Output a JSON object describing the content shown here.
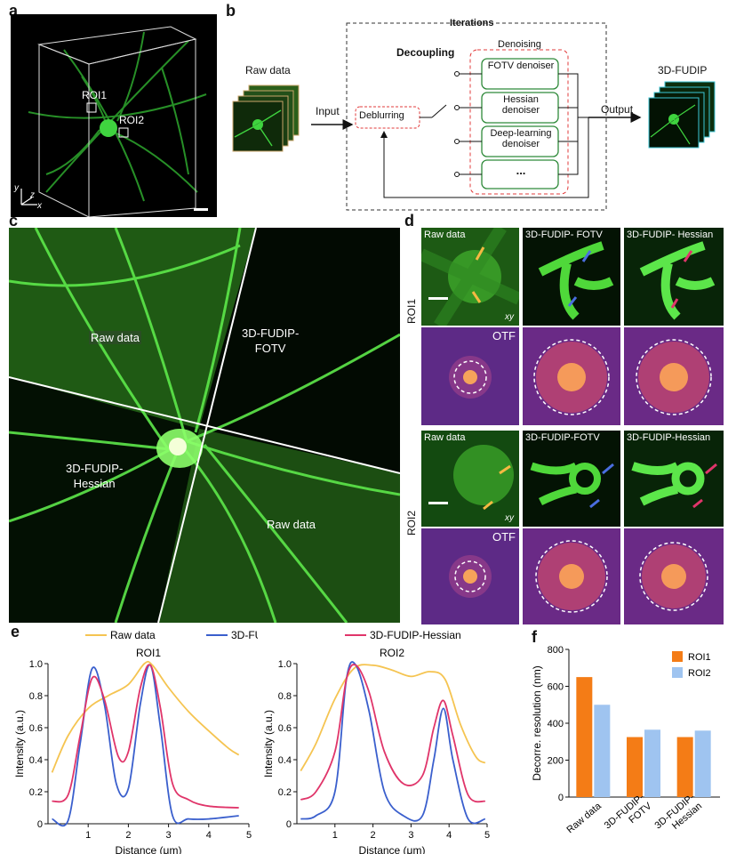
{
  "panels": {
    "a": "a",
    "b": "b",
    "c": "c",
    "d": "d",
    "e": "e",
    "f": "f"
  },
  "panel_a": {
    "roi1": "ROI1",
    "roi2": "ROI2",
    "axis_y": "y",
    "axis_z": "z",
    "axis_x": "x"
  },
  "panel_b": {
    "iterations": "Iterations",
    "decoupling": "Decoupling",
    "denoising": "Denoising",
    "raw_data": "Raw data",
    "input": "Input",
    "deblurring": "Deblurring",
    "output": "Output",
    "result": "3D-FUDIP",
    "denoisers": [
      "FOTV denoiser",
      "Hessian denoiser",
      "Deep-learning denoiser",
      "..."
    ]
  },
  "panel_c": {
    "raw_top": "Raw data",
    "fotv": "3D-FUDIP-\nFOTV",
    "hessian": "3D-FUDIP-\nHessian",
    "raw_bottom": "Raw data"
  },
  "panel_d": {
    "roi1": "ROI1",
    "roi2": "ROI2",
    "otf": "OTF",
    "xy": "xy",
    "row1_titles": [
      "Raw data",
      "3D-FUDIP- FOTV",
      "3D-FUDIP- Hessian"
    ],
    "row2_titles": [
      "Raw data",
      "3D-FUDIP-FOTV",
      "3D-FUDIP-Hessian"
    ]
  },
  "chart_data": [
    {
      "type": "line",
      "title": "ROI1",
      "xlabel": "Distance (μm)",
      "ylabel": "Intensity (a.u.)",
      "xlim": [
        0,
        5
      ],
      "ylim": [
        0,
        1.0
      ],
      "xticks": [
        1,
        2,
        3,
        4,
        5
      ],
      "yticks": [
        0,
        0.2,
        0.4,
        0.6,
        0.8,
        1.0
      ],
      "series": [
        {
          "name": "Raw data",
          "color": "#f5c451",
          "x": [
            0.1,
            0.5,
            1.0,
            1.5,
            2.0,
            2.4,
            2.6,
            3.0,
            3.5,
            4.0,
            4.5,
            4.75
          ],
          "y": [
            0.32,
            0.55,
            0.72,
            0.8,
            0.87,
            1.0,
            0.99,
            0.85,
            0.7,
            0.58,
            0.47,
            0.43
          ]
        },
        {
          "name": "3D-FUDIP-FOTV",
          "color": "#3a5fcd",
          "x": [
            0.1,
            0.5,
            0.8,
            1.1,
            1.4,
            1.7,
            2.0,
            2.3,
            2.55,
            2.8,
            3.1,
            3.5,
            4.0,
            4.75
          ],
          "y": [
            0.03,
            0.02,
            0.5,
            0.97,
            0.75,
            0.25,
            0.22,
            0.75,
            0.99,
            0.6,
            0.05,
            0.03,
            0.03,
            0.05
          ]
        },
        {
          "name": "3D-FUDIP-Hessian",
          "color": "#e0356a",
          "x": [
            0.1,
            0.5,
            0.8,
            1.1,
            1.4,
            1.75,
            2.0,
            2.3,
            2.55,
            2.8,
            3.1,
            3.5,
            4.0,
            4.75
          ],
          "y": [
            0.14,
            0.18,
            0.55,
            0.91,
            0.78,
            0.42,
            0.45,
            0.85,
            0.99,
            0.72,
            0.25,
            0.15,
            0.11,
            0.1
          ]
        }
      ]
    },
    {
      "type": "line",
      "title": "ROI2",
      "xlabel": "Distance (μm)",
      "ylabel": "Intensity (a.u.)",
      "xlim": [
        0,
        5
      ],
      "ylim": [
        0,
        1.0
      ],
      "xticks": [
        1,
        2,
        3,
        4,
        5
      ],
      "yticks": [
        0,
        0.2,
        0.4,
        0.6,
        0.8,
        1.0
      ],
      "series": [
        {
          "name": "Raw data",
          "color": "#f5c451",
          "x": [
            0.1,
            0.5,
            1.0,
            1.5,
            2.0,
            2.5,
            3.0,
            3.5,
            3.9,
            4.3,
            4.7,
            4.95
          ],
          "y": [
            0.33,
            0.5,
            0.78,
            0.97,
            0.99,
            0.96,
            0.92,
            0.95,
            0.9,
            0.62,
            0.42,
            0.38
          ]
        },
        {
          "name": "3D-FUDIP-FOTV",
          "color": "#3a5fcd",
          "x": [
            0.1,
            0.5,
            1.0,
            1.3,
            1.55,
            1.9,
            2.3,
            2.8,
            3.3,
            3.6,
            3.85,
            4.1,
            4.5,
            4.95
          ],
          "y": [
            0.03,
            0.05,
            0.2,
            0.9,
            0.99,
            0.7,
            0.2,
            0.05,
            0.05,
            0.4,
            0.72,
            0.4,
            0.03,
            0.03
          ]
        },
        {
          "name": "3D-FUDIP-Hessian",
          "color": "#e0356a",
          "x": [
            0.1,
            0.5,
            1.0,
            1.3,
            1.55,
            1.9,
            2.3,
            2.8,
            3.3,
            3.6,
            3.85,
            4.1,
            4.5,
            4.95
          ],
          "y": [
            0.15,
            0.2,
            0.45,
            0.9,
            0.99,
            0.82,
            0.45,
            0.25,
            0.3,
            0.6,
            0.77,
            0.55,
            0.18,
            0.14
          ]
        }
      ]
    },
    {
      "type": "bar",
      "title": "",
      "ylabel": "Decorre. resolution (nm)",
      "categories": [
        "Raw data",
        "3D-FUDIP-\nFOTV",
        "3D-FUDIP-\nHessian"
      ],
      "ylim": [
        0,
        800
      ],
      "yticks": [
        0,
        200,
        400,
        600,
        800
      ],
      "series": [
        {
          "name": "ROI1",
          "color": "#f47c16",
          "values": [
            650,
            325,
            325
          ]
        },
        {
          "name": "ROI2",
          "color": "#9fc4f0",
          "values": [
            500,
            365,
            360
          ]
        }
      ]
    }
  ]
}
